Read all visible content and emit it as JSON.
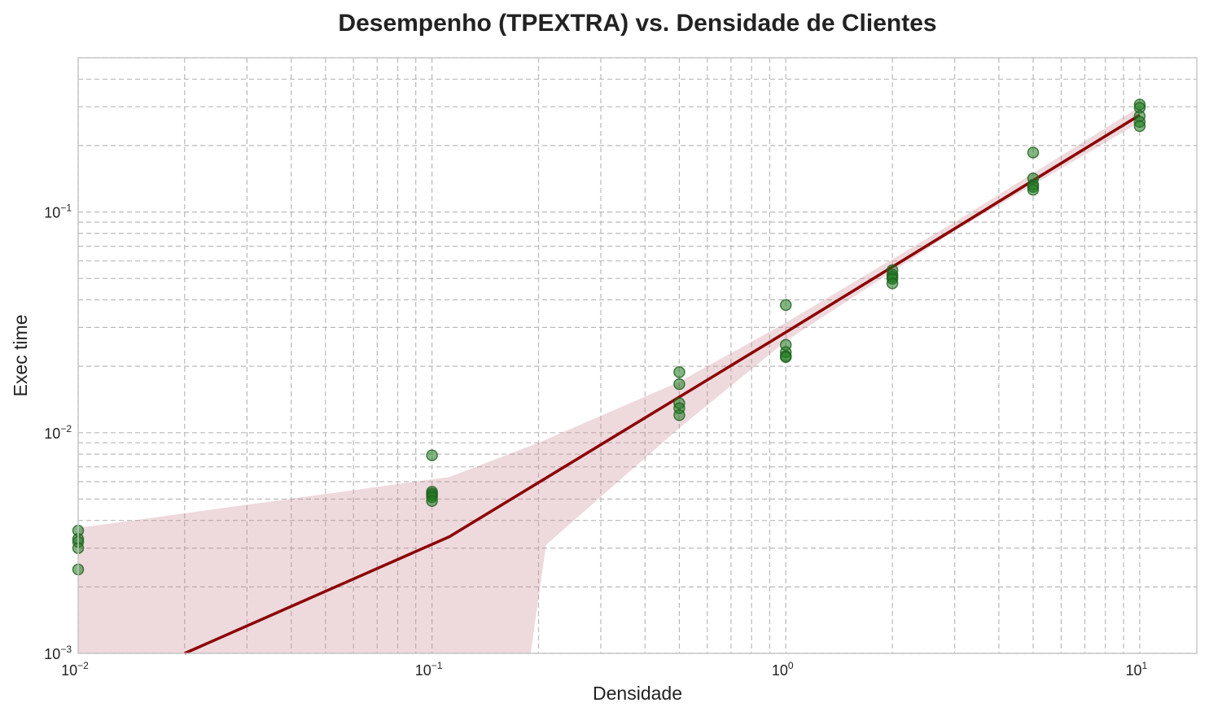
{
  "chart_data": {
    "type": "scatter",
    "title": "Desempenho (TPEXTRA) vs. Densidade de Clientes",
    "xlabel": "Densidade",
    "ylabel": "Exec time",
    "xscale": "log",
    "yscale": "log",
    "xlim": [
      0.01,
      14.5
    ],
    "ylim": [
      0.001,
      0.5
    ],
    "grid": true,
    "legend": "none",
    "x_ticks": [
      {
        "value": 0.01,
        "base": "10",
        "exp": "−2"
      },
      {
        "value": 0.1,
        "base": "10",
        "exp": "−1"
      },
      {
        "value": 1,
        "base": "10",
        "exp": "0"
      },
      {
        "value": 10,
        "base": "10",
        "exp": "1"
      }
    ],
    "y_ticks": [
      {
        "value": 0.001,
        "base": "10",
        "exp": "−3"
      },
      {
        "value": 0.01,
        "base": "10",
        "exp": "−2"
      },
      {
        "value": 0.1,
        "base": "10",
        "exp": "−1"
      }
    ],
    "colors": {
      "points": "#1e7a1e",
      "point_edge": "#1f5f1f",
      "trend": "#8b0000",
      "band": "#c98a95"
    },
    "points": [
      {
        "x": 0.01,
        "y": 0.0036
      },
      {
        "x": 0.01,
        "y": 0.0033
      },
      {
        "x": 0.01,
        "y": 0.0032
      },
      {
        "x": 0.01,
        "y": 0.003
      },
      {
        "x": 0.01,
        "y": 0.0024
      },
      {
        "x": 0.1,
        "y": 0.0079
      },
      {
        "x": 0.1,
        "y": 0.0054
      },
      {
        "x": 0.1,
        "y": 0.0053
      },
      {
        "x": 0.1,
        "y": 0.0052
      },
      {
        "x": 0.1,
        "y": 0.0051
      },
      {
        "x": 0.1,
        "y": 0.0049
      },
      {
        "x": 0.5,
        "y": 0.0188
      },
      {
        "x": 0.5,
        "y": 0.0166
      },
      {
        "x": 0.5,
        "y": 0.0136
      },
      {
        "x": 0.5,
        "y": 0.0129
      },
      {
        "x": 0.5,
        "y": 0.012
      },
      {
        "x": 1,
        "y": 0.0379
      },
      {
        "x": 1,
        "y": 0.025
      },
      {
        "x": 1,
        "y": 0.0232
      },
      {
        "x": 1,
        "y": 0.0222
      },
      {
        "x": 1,
        "y": 0.022
      },
      {
        "x": 2,
        "y": 0.0545
      },
      {
        "x": 2,
        "y": 0.052
      },
      {
        "x": 2,
        "y": 0.0508
      },
      {
        "x": 2,
        "y": 0.0498
      },
      {
        "x": 2,
        "y": 0.0475
      },
      {
        "x": 5,
        "y": 0.186
      },
      {
        "x": 5,
        "y": 0.142
      },
      {
        "x": 5,
        "y": 0.133
      },
      {
        "x": 5,
        "y": 0.13
      },
      {
        "x": 5,
        "y": 0.126
      },
      {
        "x": 10,
        "y": 0.307
      },
      {
        "x": 10,
        "y": 0.297
      },
      {
        "x": 10,
        "y": 0.272
      },
      {
        "x": 10,
        "y": 0.256
      },
      {
        "x": 10,
        "y": 0.245
      }
    ],
    "trend_line": [
      {
        "x": 0.02,
        "y": 0.001
      },
      {
        "x": 0.112,
        "y": 0.00338
      },
      {
        "x": 1,
        "y": 0.0285
      },
      {
        "x": 10,
        "y": 0.275
      }
    ],
    "confidence_band": {
      "upper": [
        {
          "x": 0.01,
          "y": 0.0037
        },
        {
          "x": 0.112,
          "y": 0.0063
        },
        {
          "x": 0.2,
          "y": 0.009
        },
        {
          "x": 0.5,
          "y": 0.017
        },
        {
          "x": 1,
          "y": 0.0315
        },
        {
          "x": 3,
          "y": 0.09
        },
        {
          "x": 10,
          "y": 0.3
        }
      ],
      "lower": [
        {
          "x": 10,
          "y": 0.255
        },
        {
          "x": 3,
          "y": 0.082
        },
        {
          "x": 1,
          "y": 0.026
        },
        {
          "x": 0.5,
          "y": 0.0105
        },
        {
          "x": 0.21,
          "y": 0.0031
        },
        {
          "x": 0.19,
          "y": 0.001
        },
        {
          "x": 0.01,
          "y": 0.001
        }
      ]
    }
  }
}
